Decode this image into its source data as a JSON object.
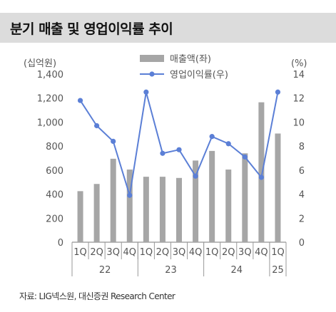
{
  "title": "분기 매출 및 영업이익률 추이",
  "source": "자료: LIG넥스원, 대신증권 Research Center",
  "chart_data": {
    "type": "bar+line",
    "left_unit": "(십억원)",
    "right_unit": "(%)",
    "categories": [
      "1Q",
      "2Q",
      "3Q",
      "4Q",
      "1Q",
      "2Q",
      "3Q",
      "4Q",
      "1Q",
      "2Q",
      "3Q",
      "4Q",
      "1Q"
    ],
    "years": [
      {
        "label": "22",
        "start": 0,
        "end": 3
      },
      {
        "label": "23",
        "start": 4,
        "end": 7
      },
      {
        "label": "24",
        "start": 8,
        "end": 11
      },
      {
        "label": "25",
        "start": 12,
        "end": 12
      }
    ],
    "series": [
      {
        "name": "매출액(좌)",
        "type": "bar",
        "axis": "left",
        "color": "#a6a6a6",
        "values": [
          425,
          485,
          695,
          605,
          545,
          545,
          535,
          680,
          760,
          605,
          740,
          1165,
          905
        ]
      },
      {
        "name": "영업이익률(우)",
        "type": "line",
        "axis": "right",
        "color": "#5b7fd6",
        "values": [
          11.8,
          9.7,
          8.4,
          3.9,
          12.5,
          7.4,
          7.7,
          5.5,
          8.8,
          8.2,
          7.1,
          5.4,
          12.5
        ]
      }
    ],
    "ylim_left": [
      0,
      1400
    ],
    "yticks_left": [
      "0",
      "200",
      "400",
      "600",
      "800",
      "1,000",
      "1,200",
      "1,400"
    ],
    "ylim_right": [
      0,
      14
    ],
    "yticks_right": [
      "0",
      "2",
      "4",
      "6",
      "8",
      "10",
      "12",
      "14"
    ],
    "grid": false,
    "legend": "top-center"
  }
}
